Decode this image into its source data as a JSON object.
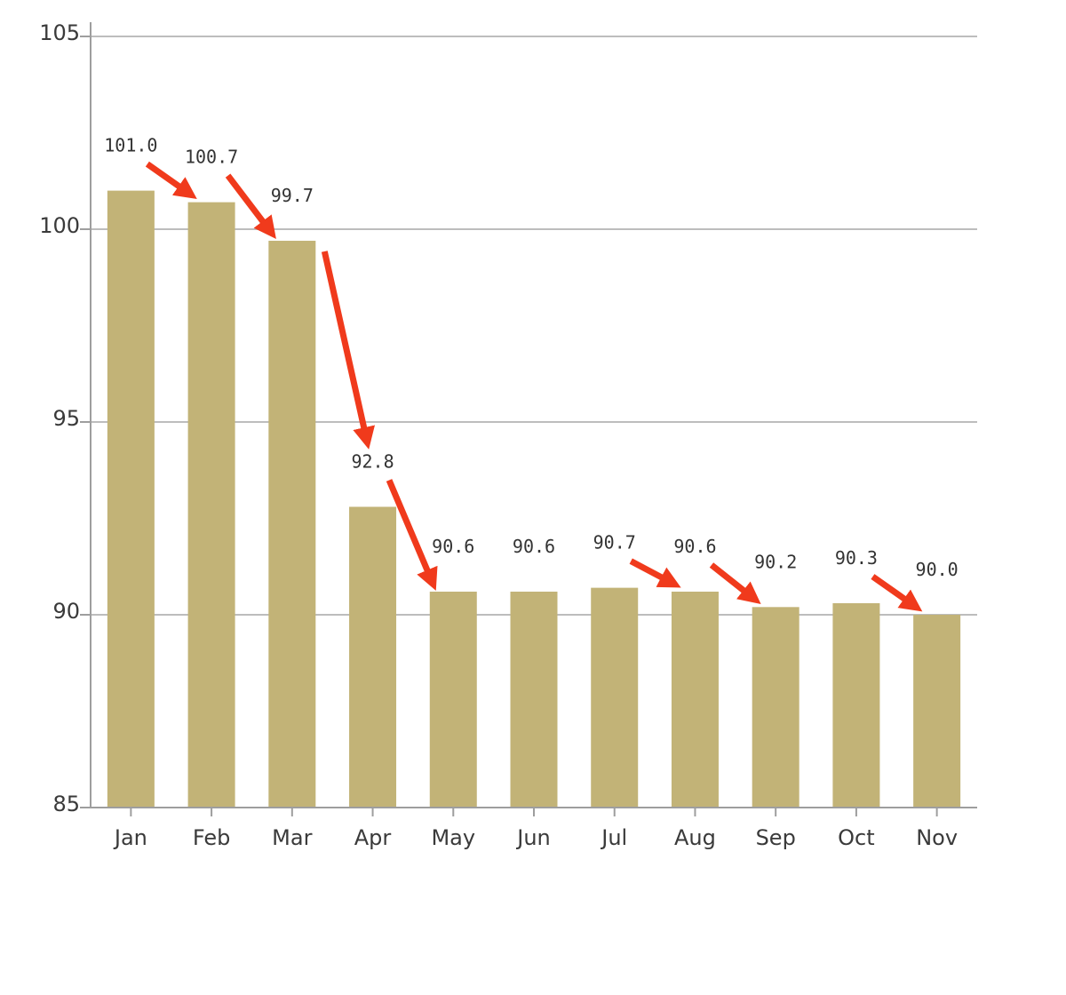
{
  "chart_data": {
    "type": "bar",
    "title": "",
    "xlabel": "",
    "ylabel": "",
    "categories": [
      "Jan",
      "Feb",
      "Mar",
      "Apr",
      "May",
      "Jun",
      "Jul",
      "Aug",
      "Sep",
      "Oct",
      "Nov"
    ],
    "values": [
      101.0,
      100.7,
      99.7,
      92.8,
      90.6,
      90.6,
      90.7,
      90.6,
      90.2,
      90.3,
      90.0
    ],
    "data_labels": [
      "101.0",
      "100.7",
      "99.7",
      "92.8",
      "90.6",
      "90.6",
      "90.7",
      "90.6",
      "90.2",
      "90.3",
      "90.0"
    ],
    "ylim": [
      85,
      105
    ],
    "yticks": [
      "85",
      "90",
      "95",
      "100",
      "105"
    ],
    "grid": true,
    "legend": "none",
    "bar_color": "#c2b377",
    "annotations": {
      "type": "decline-arrows",
      "color": "#f03a1c",
      "between": [
        [
          "Jan",
          "Feb"
        ],
        [
          "Feb",
          "Mar"
        ],
        [
          "Mar",
          "Apr"
        ],
        [
          "Apr",
          "May"
        ],
        [
          "Jul",
          "Aug"
        ],
        [
          "Aug",
          "Sep"
        ],
        [
          "Oct",
          "Nov"
        ]
      ]
    }
  }
}
